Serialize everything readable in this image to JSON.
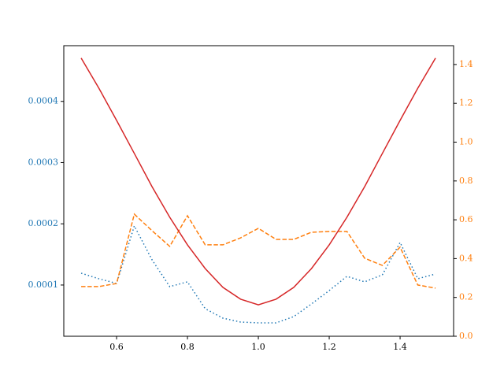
{
  "chart_data": {
    "type": "line",
    "x": [
      0.5,
      0.55,
      0.6,
      0.65,
      0.7,
      0.75,
      0.8,
      0.85,
      0.9,
      0.95,
      1.0,
      1.05,
      1.1,
      1.15,
      1.2,
      1.25,
      1.3,
      1.35,
      1.4,
      1.45,
      1.5
    ],
    "xlim": [
      0.451,
      1.551
    ],
    "xticks": [
      0.6,
      0.8,
      {
        "value": 1,
        "label": "1.0"
      },
      1.2,
      1.4
    ],
    "ylim": [
      1.63e-05,
      0.000491
    ],
    "yticks": [
      0.0001,
      0.0002,
      0.0003,
      0.0004
    ],
    "y2lim": [
      0,
      1.497
    ],
    "y2ticks": [
      {
        "value": 0,
        "label": "0.0"
      },
      0.2,
      0.4,
      0.6,
      0.8,
      {
        "value": 1,
        "label": "1.0"
      },
      1.2,
      1.4
    ],
    "y_tick_color": "#1f77b4",
    "y2_tick_color": "#ff7f0e",
    "series": [
      {
        "color": "#1f77b4",
        "linestyle": "dotted",
        "values": [
          0.0001193,
          0.0001103,
          0.0001026,
          0.0001966,
          0.0001412,
          9.74e-05,
          0.0001052,
          6.14e-05,
          4.59e-05,
          3.95e-05,
          3.82e-05,
          3.82e-05,
          4.85e-05,
          6.91e-05,
          9.1e-05,
          0.0001142,
          0.0001052,
          0.0001167,
          0.0001695,
          0.0001103,
          0.000118
        ]
      },
      {
        "color": "#ff7f0e",
        "linestyle": "dashed",
        "axis": "y2",
        "values": [
          0.256,
          0.256,
          0.272,
          0.629,
          0.544,
          0.463,
          0.621,
          0.471,
          0.471,
          0.507,
          0.556,
          0.499,
          0.499,
          0.536,
          0.54,
          0.54,
          0.402,
          0.365,
          0.459,
          0.264,
          0.248
        ]
      },
      {
        "color": "#d62728",
        "linestyle": "solid",
        "axis": "y2",
        "values": [
          1.433,
          1.278,
          1.112,
          0.942,
          0.771,
          0.613,
          0.471,
          0.349,
          0.252,
          0.191,
          0.162,
          0.191,
          0.252,
          0.349,
          0.471,
          0.613,
          0.771,
          0.942,
          1.112,
          1.278,
          1.433
        ]
      }
    ]
  }
}
